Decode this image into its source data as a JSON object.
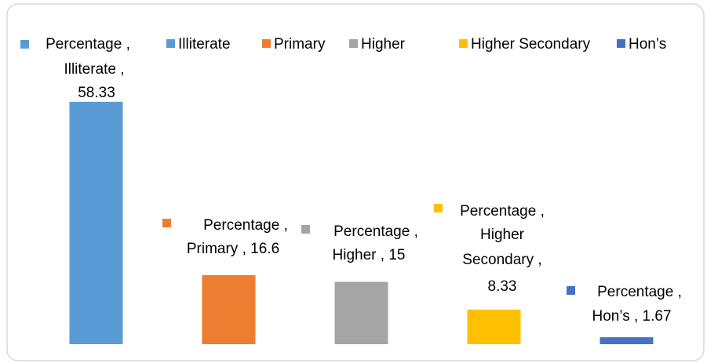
{
  "chart_data": {
    "type": "bar",
    "series_name": "Percentage",
    "categories": [
      "Illiterate",
      "Primary",
      "Higher",
      "Higher Secondary",
      "Hon’s"
    ],
    "values": [
      58.33,
      16.6,
      15,
      8.33,
      1.67
    ],
    "colors": [
      "#5b9bd5",
      "#ed7d31",
      "#a5a5a5",
      "#ffc000",
      "#4472c4"
    ],
    "ylim": [
      0,
      60
    ],
    "legend": "top"
  }
}
